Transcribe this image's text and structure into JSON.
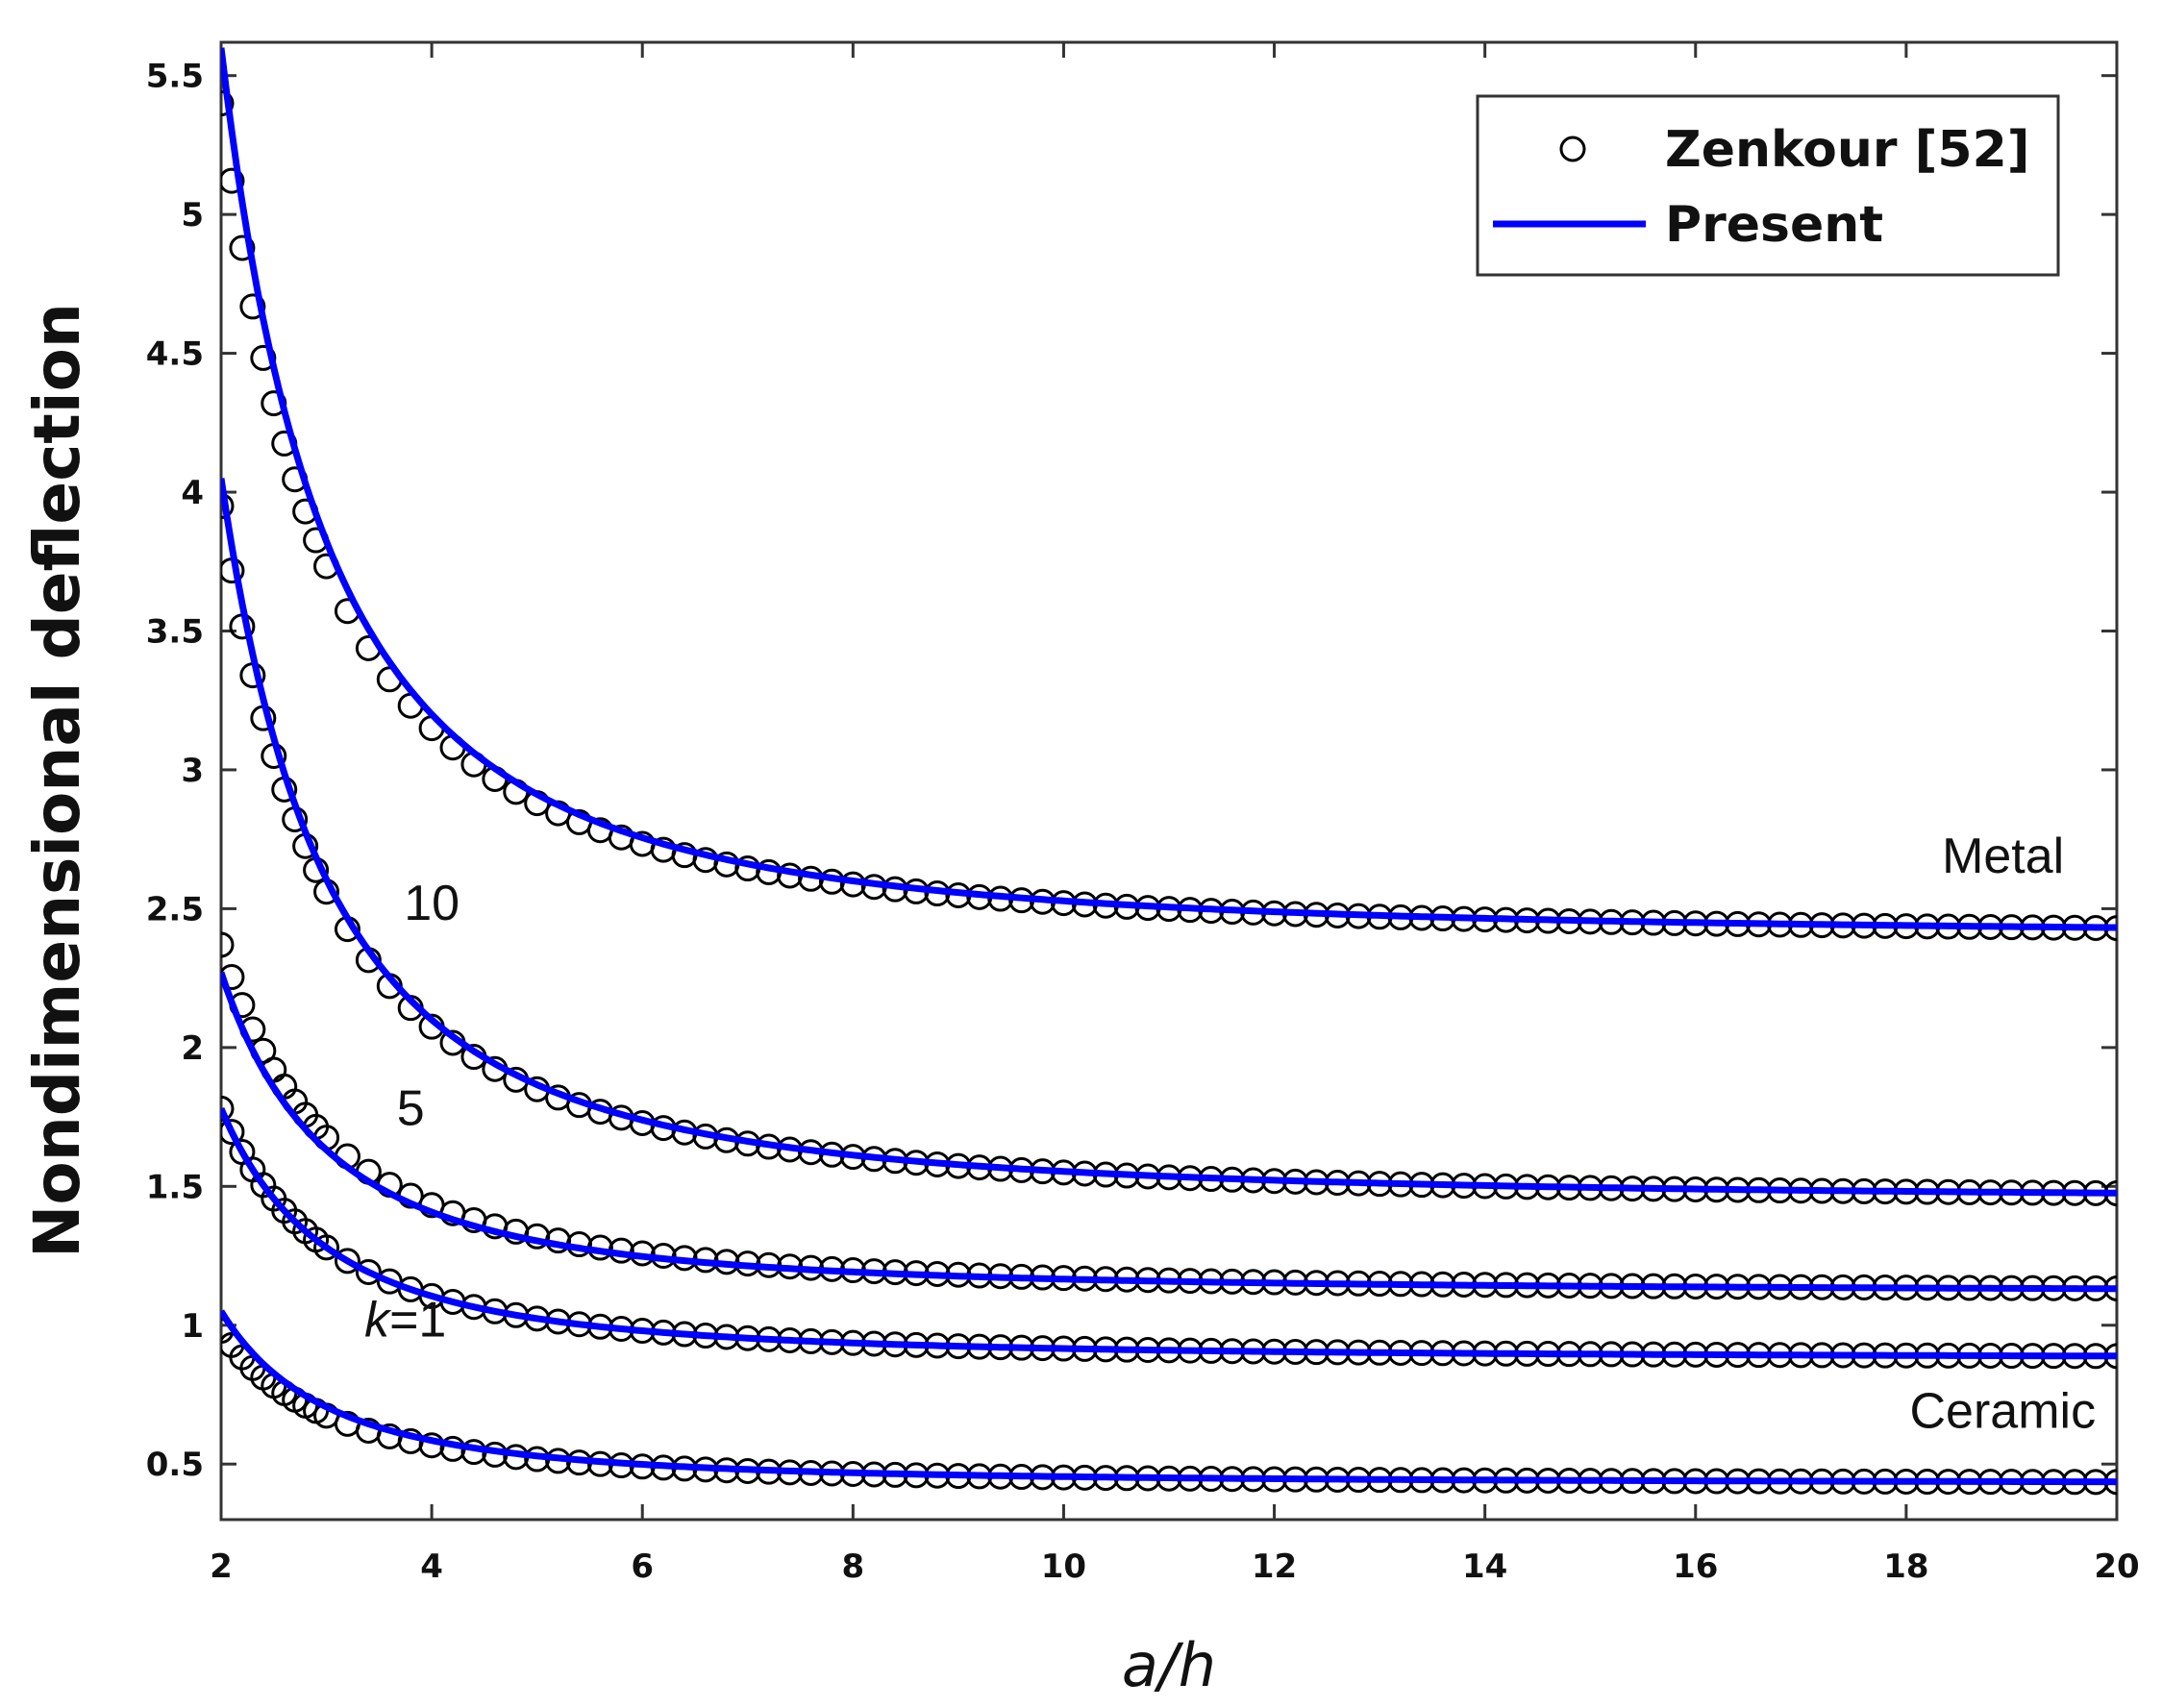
{
  "chart_data": {
    "type": "line",
    "title": "",
    "xlabel": "a/h",
    "ylabel": "Nondimensional deflection",
    "xlim": [
      2,
      20
    ],
    "ylim": [
      0.3,
      5.62
    ],
    "x_ticks": [
      "2",
      "4",
      "6",
      "8",
      "10",
      "12",
      "14",
      "16",
      "18",
      "20"
    ],
    "y_ticks": [
      "0.5",
      "1",
      "1.5",
      "2",
      "2.5",
      "3",
      "3.5",
      "4",
      "4.5",
      "5",
      "5.5"
    ],
    "grid": false,
    "legend_position": "top-right",
    "legend": [
      {
        "label": "Zenkour [52]",
        "marker": "circle",
        "color": "#000000"
      },
      {
        "label": "Present",
        "marker": "line",
        "color": "#0000ff"
      }
    ],
    "model": "w(a/h) = w_inf + c / (a/h)^2",
    "series": [
      {
        "curve": "Metal",
        "present": {
          "w_inf": 2.4,
          "c": 12.8
        },
        "zenkour": {
          "w_inf": 2.4,
          "c": 12.0
        }
      },
      {
        "curve": "k=10",
        "present": {
          "w_inf": 1.45,
          "c": 10.4
        },
        "zenkour": {
          "w_inf": 1.45,
          "c": 10.0
        }
      },
      {
        "curve": "k=5",
        "present": {
          "w_inf": 1.12,
          "c": 4.6
        },
        "zenkour": {
          "w_inf": 1.12,
          "c": 5.0
        }
      },
      {
        "curve": "k=1",
        "present": {
          "w_inf": 0.88,
          "c": 3.6
        },
        "zenkour": {
          "w_inf": 0.88,
          "c": 3.6
        }
      },
      {
        "curve": "Ceramic",
        "present": {
          "w_inf": 0.43,
          "c": 2.48
        },
        "zenkour": {
          "w_inf": 0.43,
          "c": 2.2
        }
      }
    ],
    "annotations": [
      {
        "text": "Metal",
        "x": 19.5,
        "y": 2.63
      },
      {
        "text": "10",
        "x": 4.0,
        "y": 2.46
      },
      {
        "text": "5",
        "x": 3.8,
        "y": 1.72
      },
      {
        "text": "k=1",
        "x": 3.75,
        "y": 0.96
      },
      {
        "text": "Ceramic",
        "x": 19.8,
        "y": 0.63
      }
    ]
  }
}
